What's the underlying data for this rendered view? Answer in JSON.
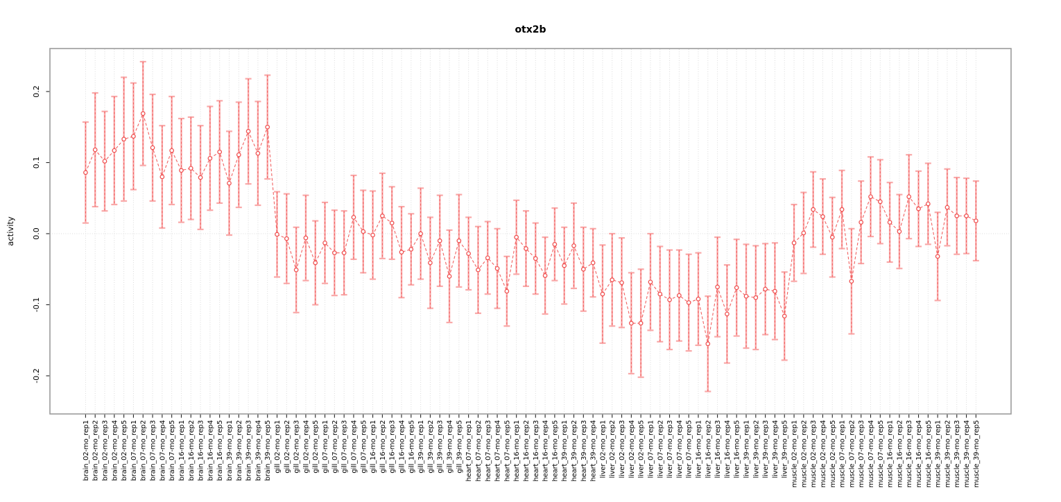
{
  "chart_data": {
    "type": "scatter",
    "title": "otx2b",
    "xlabel": "",
    "ylabel": "activity",
    "ylim": [
      -0.26,
      0.26
    ],
    "grid": "vertical dotted gridline at every point; dotted horizontal line at y=0",
    "legend_position": "none",
    "marker": "open-circle",
    "line_style": "dashed",
    "error_bar_style": "solid pink stem with caps plus dashed red overlay",
    "colors": {
      "point": "#f05050",
      "line": "#f05050",
      "errorbar": "#f9a8a8",
      "grid": "#dadada",
      "box": "#9b9b9b",
      "tick": "#222222",
      "text": "#000000"
    },
    "yticks": [
      {
        "label": "-0.2",
        "value": -0.2
      },
      {
        "label": "-0.1",
        "value": -0.1
      },
      {
        "label": "0.0",
        "value": 0.0
      },
      {
        "label": "0.1",
        "value": 0.1
      },
      {
        "label": "0.2",
        "value": 0.2
      }
    ],
    "points": [
      {
        "label": "brain_02-mo_rep1",
        "value": 0.086,
        "err": 0.071
      },
      {
        "label": "brain_02-mo_rep2",
        "value": 0.118,
        "err": 0.08
      },
      {
        "label": "brain_02-mo_rep3",
        "value": 0.102,
        "err": 0.07
      },
      {
        "label": "brain_02-mo_rep4",
        "value": 0.117,
        "err": 0.076
      },
      {
        "label": "brain_02-mo_rep5",
        "value": 0.133,
        "err": 0.087
      },
      {
        "label": "brain_07-mo_rep1",
        "value": 0.137,
        "err": 0.075
      },
      {
        "label": "brain_07-mo_rep2",
        "value": 0.169,
        "err": 0.073
      },
      {
        "label": "brain_07-mo_rep3",
        "value": 0.121,
        "err": 0.075
      },
      {
        "label": "brain_07-mo_rep4",
        "value": 0.08,
        "err": 0.072
      },
      {
        "label": "brain_07-mo_rep5",
        "value": 0.117,
        "err": 0.076
      },
      {
        "label": "brain_16-mo_rep1",
        "value": 0.089,
        "err": 0.073
      },
      {
        "label": "brain_16-mo_rep2",
        "value": 0.092,
        "err": 0.072
      },
      {
        "label": "brain_16-mo_rep3",
        "value": 0.079,
        "err": 0.073
      },
      {
        "label": "brain_16-mo_rep4",
        "value": 0.106,
        "err": 0.073
      },
      {
        "label": "brain_16-mo_rep5",
        "value": 0.115,
        "err": 0.072
      },
      {
        "label": "brain_39-mo_rep1",
        "value": 0.071,
        "err": 0.073
      },
      {
        "label": "brain_39-mo_rep2",
        "value": 0.111,
        "err": 0.074
      },
      {
        "label": "brain_39-mo_rep3",
        "value": 0.144,
        "err": 0.074
      },
      {
        "label": "brain_39-mo_rep4",
        "value": 0.113,
        "err": 0.073
      },
      {
        "label": "brain_39-mo_rep5",
        "value": 0.15,
        "err": 0.073
      },
      {
        "label": "gill_02-mo_rep1",
        "value": -0.001,
        "err": 0.06
      },
      {
        "label": "gill_02-mo_rep2",
        "value": -0.007,
        "err": 0.063
      },
      {
        "label": "gill_02-mo_rep3",
        "value": -0.051,
        "err": 0.06
      },
      {
        "label": "gill_02-mo_rep4",
        "value": -0.006,
        "err": 0.06
      },
      {
        "label": "gill_02-mo_rep5",
        "value": -0.041,
        "err": 0.059
      },
      {
        "label": "gill_07-mo_rep1",
        "value": -0.013,
        "err": 0.057
      },
      {
        "label": "gill_07-mo_rep2",
        "value": -0.027,
        "err": 0.06
      },
      {
        "label": "gill_07-mo_rep3",
        "value": -0.027,
        "err": 0.059
      },
      {
        "label": "gill_07-mo_rep4",
        "value": 0.023,
        "err": 0.059
      },
      {
        "label": "gill_07-mo_rep5",
        "value": 0.003,
        "err": 0.058
      },
      {
        "label": "gill_16-mo_rep1",
        "value": -0.002,
        "err": 0.062
      },
      {
        "label": "gill_16-mo_rep2",
        "value": 0.025,
        "err": 0.06
      },
      {
        "label": "gill_16-mo_rep3",
        "value": 0.015,
        "err": 0.051
      },
      {
        "label": "gill_16-mo_rep4",
        "value": -0.026,
        "err": 0.064
      },
      {
        "label": "gill_16-mo_rep5",
        "value": -0.022,
        "err": 0.05
      },
      {
        "label": "gill_39-mo_rep1",
        "value": 0.0,
        "err": 0.064
      },
      {
        "label": "gill_39-mo_rep2",
        "value": -0.041,
        "err": 0.064
      },
      {
        "label": "gill_39-mo_rep3",
        "value": -0.01,
        "err": 0.064
      },
      {
        "label": "gill_39-mo_rep4",
        "value": -0.06,
        "err": 0.065
      },
      {
        "label": "gill_39-mo_rep5",
        "value": -0.01,
        "err": 0.065
      },
      {
        "label": "heart_07-mo_rep1",
        "value": -0.028,
        "err": 0.051
      },
      {
        "label": "heart_07-mo_rep2",
        "value": -0.051,
        "err": 0.061
      },
      {
        "label": "heart_07-mo_rep3",
        "value": -0.034,
        "err": 0.051
      },
      {
        "label": "heart_07-mo_rep4",
        "value": -0.049,
        "err": 0.056
      },
      {
        "label": "heart_07-mo_rep5",
        "value": -0.081,
        "err": 0.049
      },
      {
        "label": "heart_16-mo_rep1",
        "value": -0.005,
        "err": 0.052
      },
      {
        "label": "heart_16-mo_rep2",
        "value": -0.021,
        "err": 0.053
      },
      {
        "label": "heart_16-mo_rep3",
        "value": -0.035,
        "err": 0.05
      },
      {
        "label": "heart_16-mo_rep4",
        "value": -0.059,
        "err": 0.054
      },
      {
        "label": "heart_16-mo_rep5",
        "value": -0.015,
        "err": 0.051
      },
      {
        "label": "heart_39-mo_rep1",
        "value": -0.045,
        "err": 0.054
      },
      {
        "label": "heart_39-mo_rep2",
        "value": -0.017,
        "err": 0.06
      },
      {
        "label": "heart_39-mo_rep3",
        "value": -0.05,
        "err": 0.059
      },
      {
        "label": "heart_39-mo_rep4",
        "value": -0.041,
        "err": 0.048
      },
      {
        "label": "liver_02-mo_rep1",
        "value": -0.085,
        "err": 0.069
      },
      {
        "label": "liver_02-mo_rep2",
        "value": -0.065,
        "err": 0.065
      },
      {
        "label": "liver_02-mo_rep3",
        "value": -0.069,
        "err": 0.063
      },
      {
        "label": "liver_02-mo_rep4",
        "value": -0.126,
        "err": 0.071
      },
      {
        "label": "liver_02-mo_rep5",
        "value": -0.126,
        "err": 0.076
      },
      {
        "label": "liver_07-mo_rep1",
        "value": -0.068,
        "err": 0.068
      },
      {
        "label": "liver_07-mo_rep2",
        "value": -0.085,
        "err": 0.067
      },
      {
        "label": "liver_07-mo_rep3",
        "value": -0.093,
        "err": 0.07
      },
      {
        "label": "liver_07-mo_rep4",
        "value": -0.087,
        "err": 0.064
      },
      {
        "label": "liver_07-mo_rep5",
        "value": -0.097,
        "err": 0.068
      },
      {
        "label": "liver_16-mo_rep1",
        "value": -0.092,
        "err": 0.065
      },
      {
        "label": "liver_16-mo_rep2",
        "value": -0.155,
        "err": 0.067
      },
      {
        "label": "liver_16-mo_rep3",
        "value": -0.075,
        "err": 0.07
      },
      {
        "label": "liver_16-mo_rep4",
        "value": -0.113,
        "err": 0.069
      },
      {
        "label": "liver_16-mo_rep5",
        "value": -0.076,
        "err": 0.068
      },
      {
        "label": "liver_39-mo_rep1",
        "value": -0.088,
        "err": 0.073
      },
      {
        "label": "liver_39-mo_rep2",
        "value": -0.09,
        "err": 0.073
      },
      {
        "label": "liver_39-mo_rep3",
        "value": -0.078,
        "err": 0.064
      },
      {
        "label": "liver_39-mo_rep4",
        "value": -0.081,
        "err": 0.068
      },
      {
        "label": "liver_39-mo_rep5",
        "value": -0.116,
        "err": 0.062
      },
      {
        "label": "muscle_02-mo_rep1",
        "value": -0.013,
        "err": 0.054
      },
      {
        "label": "muscle_02-mo_rep2",
        "value": 0.001,
        "err": 0.057
      },
      {
        "label": "muscle_02-mo_rep3",
        "value": 0.034,
        "err": 0.053
      },
      {
        "label": "muscle_02-mo_rep4",
        "value": 0.024,
        "err": 0.053
      },
      {
        "label": "muscle_02-mo_rep5",
        "value": -0.005,
        "err": 0.056
      },
      {
        "label": "muscle_07-mo_rep1",
        "value": 0.034,
        "err": 0.055
      },
      {
        "label": "muscle_07-mo_rep2",
        "value": -0.067,
        "err": 0.074
      },
      {
        "label": "muscle_07-mo_rep3",
        "value": 0.016,
        "err": 0.058
      },
      {
        "label": "muscle_07-mo_rep4",
        "value": 0.052,
        "err": 0.056
      },
      {
        "label": "muscle_07-mo_rep5",
        "value": 0.045,
        "err": 0.059
      },
      {
        "label": "muscle_16-mo_rep1",
        "value": 0.016,
        "err": 0.056
      },
      {
        "label": "muscle_16-mo_rep2",
        "value": 0.003,
        "err": 0.052
      },
      {
        "label": "muscle_16-mo_rep3",
        "value": 0.052,
        "err": 0.059
      },
      {
        "label": "muscle_16-mo_rep4",
        "value": 0.035,
        "err": 0.053
      },
      {
        "label": "muscle_16-mo_rep5",
        "value": 0.042,
        "err": 0.057
      },
      {
        "label": "muscle_39-mo_rep1",
        "value": -0.032,
        "err": 0.062
      },
      {
        "label": "muscle_39-mo_rep2",
        "value": 0.037,
        "err": 0.054
      },
      {
        "label": "muscle_39-mo_rep3",
        "value": 0.025,
        "err": 0.054
      },
      {
        "label": "muscle_39-mo_rep4",
        "value": 0.025,
        "err": 0.053
      },
      {
        "label": "muscle_39-mo_rep5",
        "value": 0.018,
        "err": 0.056
      }
    ]
  }
}
